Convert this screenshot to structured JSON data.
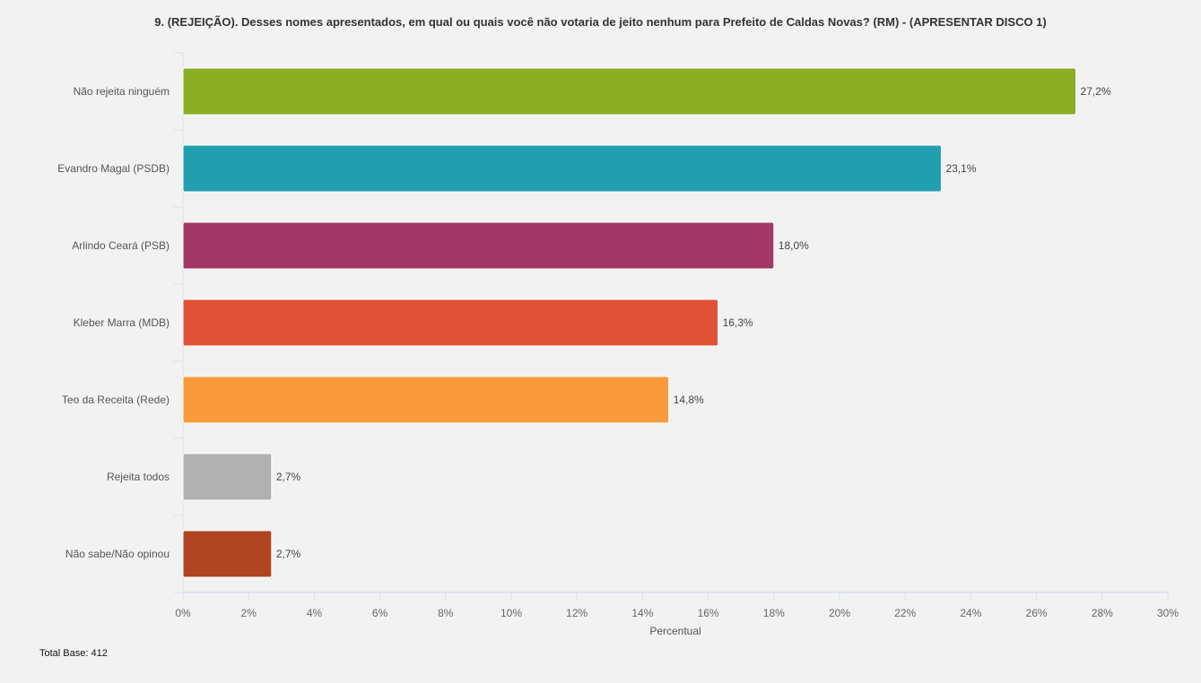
{
  "chart_data": {
    "type": "bar",
    "orientation": "horizontal",
    "title": "9. (REJEIÇÃO). Desses nomes apresentados, em qual ou quais você não votaria de jeito nenhum para Prefeito de Caldas Novas? (RM) - (APRESENTAR DISCO 1)",
    "categories": [
      "Não rejeita ninguém",
      "Evandro Magal (PSDB)",
      "Arlindo Ceará (PSB)",
      "Kleber Marra (MDB)",
      "Teo da Receita (Rede)",
      "Rejeita todos",
      "Não sabe/Não opinou"
    ],
    "values": [
      27.2,
      23.1,
      18.0,
      16.3,
      14.8,
      2.7,
      2.7
    ],
    "value_labels": [
      "27,2%",
      "23,1%",
      "18,0%",
      "16,3%",
      "14,8%",
      "2,7%",
      "2,7%"
    ],
    "colors": [
      "#8aad24",
      "#219fb0",
      "#a33766",
      "#e05137",
      "#f99b3d",
      "#b0b0b0",
      "#ae4421"
    ],
    "xlabel": "Percentual",
    "xlim": [
      0,
      30
    ],
    "xticks": [
      "0%",
      "2%",
      "4%",
      "6%",
      "8%",
      "10%",
      "12%",
      "14%",
      "16%",
      "18%",
      "20%",
      "22%",
      "24%",
      "26%",
      "28%",
      "30%"
    ],
    "grid": false
  },
  "footer": {
    "total_base": "Total Base:  412"
  }
}
